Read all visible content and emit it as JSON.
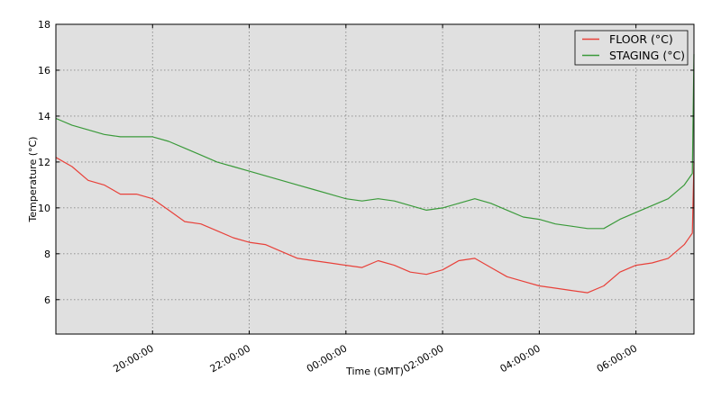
{
  "chart_data": {
    "type": "line",
    "title": "",
    "xlabel": "Time (GMT)",
    "ylabel": "Temperature (°C)",
    "ylim": [
      4.5,
      18
    ],
    "yticks": [
      6,
      8,
      10,
      12,
      14,
      16,
      18
    ],
    "xlim": [
      "18:00:00",
      "07:12:00"
    ],
    "xticks": [
      "20:00:00",
      "22:00:00",
      "00:00:00",
      "02:00:00",
      "04:00:00",
      "06:00:00"
    ],
    "grid": true,
    "legend_position": "top-right",
    "colors": {
      "background": "#e0e0e0",
      "FLOOR (°C)": "#e8413a",
      "STAGING (°C)": "#3a9a3a"
    },
    "x": [
      "18:00:00",
      "18:20:00",
      "18:40:00",
      "19:00:00",
      "19:20:00",
      "19:40:00",
      "20:00:00",
      "20:20:00",
      "20:40:00",
      "21:00:00",
      "21:20:00",
      "21:40:00",
      "22:00:00",
      "22:20:00",
      "22:40:00",
      "23:00:00",
      "23:20:00",
      "23:40:00",
      "00:00:00",
      "00:20:00",
      "00:40:00",
      "01:00:00",
      "01:20:00",
      "01:40:00",
      "02:00:00",
      "02:20:00",
      "02:40:00",
      "03:00:00",
      "03:20:00",
      "03:40:00",
      "04:00:00",
      "04:20:00",
      "04:40:00",
      "05:00:00",
      "05:20:00",
      "05:40:00",
      "06:00:00",
      "06:20:00",
      "06:40:00",
      "07:00:00",
      "07:10:00",
      "07:12:00"
    ],
    "series": [
      {
        "name": "FLOOR (°C)",
        "values": [
          12.2,
          11.8,
          11.2,
          11.0,
          10.6,
          10.6,
          10.4,
          9.9,
          9.4,
          9.3,
          9.0,
          8.7,
          8.5,
          8.4,
          8.1,
          7.8,
          7.7,
          7.6,
          7.5,
          7.4,
          7.7,
          7.5,
          7.2,
          7.1,
          7.3,
          7.7,
          7.8,
          7.4,
          7.0,
          6.8,
          6.6,
          6.5,
          6.4,
          6.3,
          6.6,
          7.2,
          7.5,
          7.6,
          7.8,
          8.4,
          8.9,
          12.0
        ]
      },
      {
        "name": "STAGING (°C)",
        "values": [
          13.9,
          13.6,
          13.4,
          13.2,
          13.1,
          13.1,
          13.1,
          12.9,
          12.6,
          12.3,
          12.0,
          11.8,
          11.6,
          11.4,
          11.2,
          11.0,
          10.8,
          10.6,
          10.4,
          10.3,
          10.4,
          10.3,
          10.1,
          9.9,
          10.0,
          10.2,
          10.4,
          10.2,
          9.9,
          9.6,
          9.5,
          9.3,
          9.2,
          9.1,
          9.1,
          9.5,
          9.8,
          10.1,
          10.4,
          11.0,
          11.5,
          16.7
        ]
      }
    ]
  }
}
